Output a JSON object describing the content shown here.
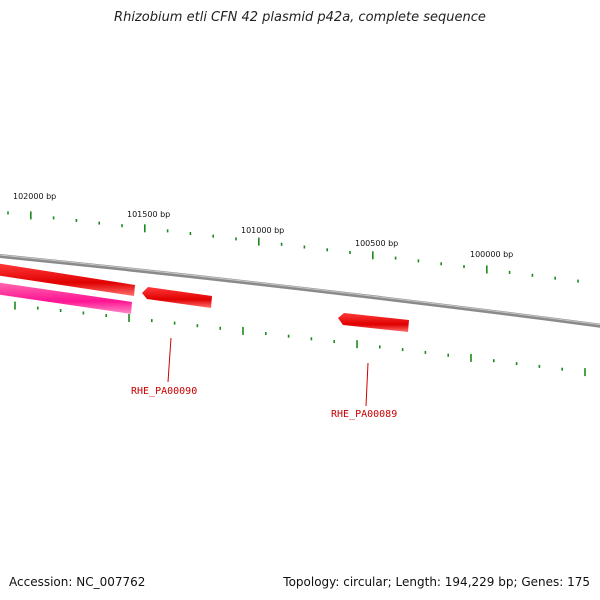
{
  "title": "Rhizobium etli CFN 42 plasmid p42a, complete sequence",
  "footer": {
    "accession": "Accession: NC_007762",
    "info": "Topology: circular; Length: 194,229 bp; Genes: 175"
  },
  "scale_labels": [
    "102000 bp",
    "101500 bp",
    "101000 bp",
    "100500 bp",
    "100000 bp"
  ],
  "genes": [
    {
      "label": "RHE_PA00090",
      "color": "#ee0000"
    },
    {
      "label": "RHE_PA00089",
      "color": "#ee0000"
    }
  ],
  "colors": {
    "backbone": "#808080",
    "tick": "#1a8a1a",
    "gene_forward": "#ee0000",
    "gene_reverse": "#ff1493",
    "label": "#cc0000"
  }
}
